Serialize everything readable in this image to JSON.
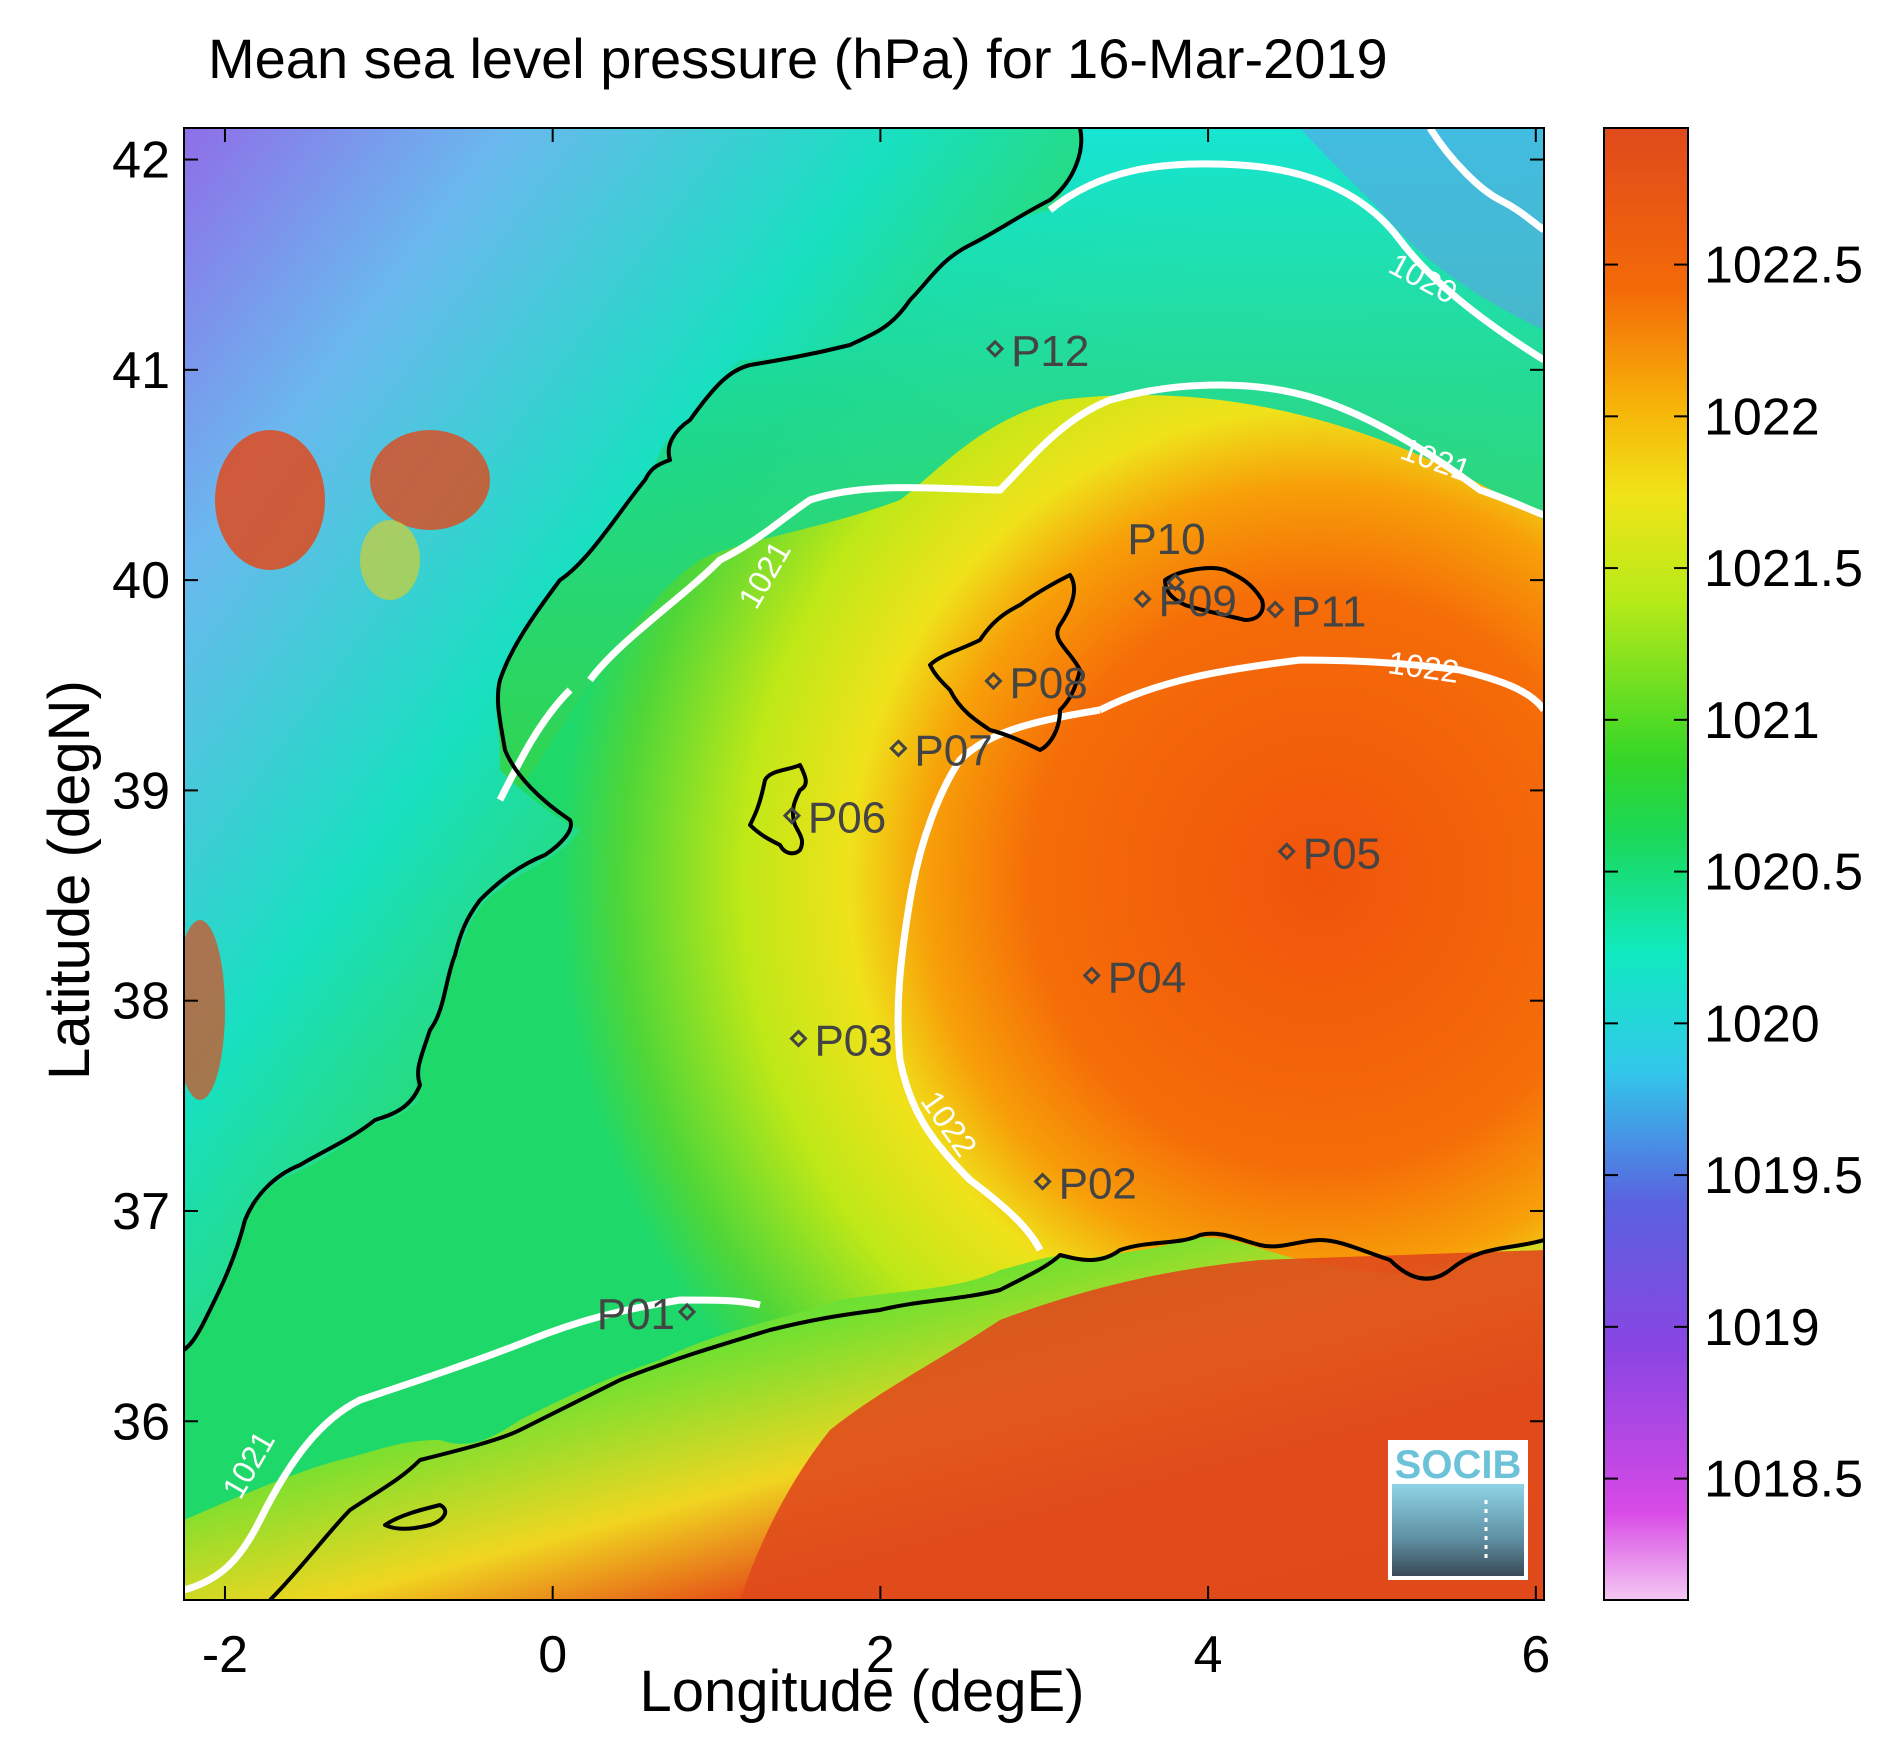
{
  "title": "Mean sea level pressure (hPa) for 16-Mar-2019",
  "xlabel": "Longitude (degE)",
  "ylabel": "Latitude (degN)",
  "axes": {
    "x_range": [
      -2.25,
      6.05
    ],
    "y_range": [
      35.15,
      42.15
    ],
    "x_ticks": [
      "-2",
      "0",
      "2",
      "4",
      "6"
    ],
    "y_ticks": [
      "36",
      "37",
      "38",
      "39",
      "40",
      "41",
      "42"
    ]
  },
  "colorbar": {
    "range": [
      1018.1,
      1022.95
    ],
    "ticks": [
      "1018.5",
      "1019",
      "1019.5",
      "1020",
      "1020.5",
      "1021",
      "1021.5",
      "1022",
      "1022.5"
    ]
  },
  "contour_labels": [
    "1020",
    "1021",
    "1021",
    "1021",
    "1022",
    "1022"
  ],
  "stations": [
    {
      "id": "P01",
      "lon": 0.82,
      "lat": 36.52
    },
    {
      "id": "P02",
      "lon": 2.99,
      "lat": 37.14
    },
    {
      "id": "P03",
      "lon": 1.5,
      "lat": 37.82
    },
    {
      "id": "P04",
      "lon": 3.29,
      "lat": 38.12
    },
    {
      "id": "P05",
      "lon": 4.48,
      "lat": 38.71
    },
    {
      "id": "P06",
      "lon": 1.46,
      "lat": 38.88
    },
    {
      "id": "P07",
      "lon": 2.11,
      "lat": 39.2
    },
    {
      "id": "P08",
      "lon": 2.69,
      "lat": 39.52
    },
    {
      "id": "P09",
      "lon": 3.6,
      "lat": 39.91
    },
    {
      "id": "P10",
      "lon": 3.8,
      "lat": 39.99
    },
    {
      "id": "P11",
      "lon": 4.41,
      "lat": 39.86
    },
    {
      "id": "P12",
      "lon": 2.7,
      "lat": 41.1
    }
  ],
  "logo_text": "SOCIB",
  "colors": {
    "contour": "#ffffff",
    "coast": "#000000",
    "station": "#444444",
    "land_high": "#e04a1c",
    "sea_max": "#f25a10"
  }
}
